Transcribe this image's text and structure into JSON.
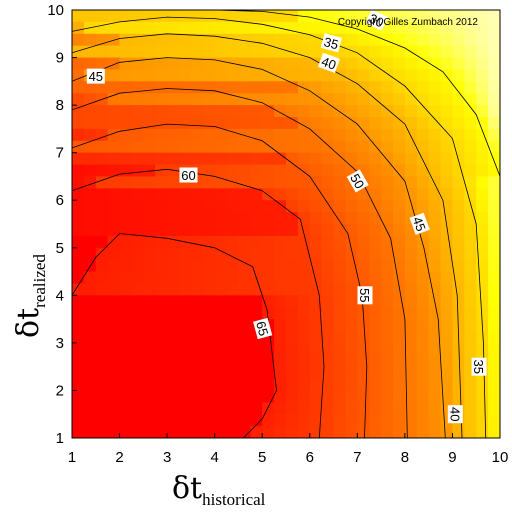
{
  "chart_data": {
    "type": "heatmap",
    "title": "",
    "annotation": "Copyright Gilles Zumbach 2012",
    "xlabel": {
      "symbol": "δt",
      "subscript": "historical"
    },
    "ylabel": {
      "symbol": "δt",
      "subscript": "realized"
    },
    "xlim": [
      1,
      10
    ],
    "ylim": [
      1,
      10
    ],
    "x_ticks": [
      1,
      2,
      3,
      4,
      5,
      6,
      7,
      8,
      9,
      10
    ],
    "y_ticks": [
      1,
      2,
      3,
      4,
      5,
      6,
      7,
      8,
      9,
      10
    ],
    "grid": false,
    "colormap": [
      "#ff0000",
      "#ff8a00",
      "#ffff00",
      "#ffffe0"
    ],
    "value_range": [
      18,
      70
    ],
    "contour_levels": [
      30,
      35,
      40,
      45,
      50,
      55,
      60,
      65
    ],
    "contours": [
      {
        "level": 65,
        "points": [
          [
            1,
            4.0
          ],
          [
            1.5,
            4.8
          ],
          [
            2,
            5.3
          ],
          [
            3,
            5.2
          ],
          [
            4,
            5.0
          ],
          [
            4.8,
            4.6
          ],
          [
            5.1,
            3.7
          ],
          [
            5.3,
            2.0
          ],
          [
            5.0,
            1.4
          ],
          [
            4.6,
            1.0
          ]
        ]
      },
      {
        "level": 60,
        "points": [
          [
            1,
            6.2
          ],
          [
            2,
            6.55
          ],
          [
            3,
            6.65
          ],
          [
            4,
            6.5
          ],
          [
            5,
            6.2
          ],
          [
            5.8,
            5.6
          ],
          [
            6.2,
            4.0
          ],
          [
            6.3,
            2.5
          ],
          [
            6.2,
            1.0
          ]
        ]
      },
      {
        "level": 55,
        "points": [
          [
            1,
            7.1
          ],
          [
            2,
            7.45
          ],
          [
            3,
            7.6
          ],
          [
            4,
            7.55
          ],
          [
            5,
            7.25
          ],
          [
            6,
            6.5
          ],
          [
            6.8,
            5.3
          ],
          [
            7.1,
            4.0
          ],
          [
            7.2,
            2.5
          ],
          [
            7.15,
            1.0
          ]
        ]
      },
      {
        "level": 50,
        "points": [
          [
            1,
            7.9
          ],
          [
            2,
            8.25
          ],
          [
            3,
            8.35
          ],
          [
            4,
            8.3
          ],
          [
            5,
            8.05
          ],
          [
            6,
            7.5
          ],
          [
            7,
            6.6
          ],
          [
            7.7,
            5.2
          ],
          [
            8.0,
            3.5
          ],
          [
            8.05,
            1.0
          ]
        ]
      },
      {
        "level": 45,
        "points": [
          [
            1,
            8.5
          ],
          [
            2,
            8.9
          ],
          [
            3,
            9.0
          ],
          [
            4,
            8.95
          ],
          [
            5,
            8.75
          ],
          [
            6,
            8.3
          ],
          [
            7,
            7.6
          ],
          [
            8,
            6.4
          ],
          [
            8.4,
            5.0
          ],
          [
            8.7,
            3.5
          ],
          [
            8.85,
            1.0
          ]
        ]
      },
      {
        "level": 40,
        "points": [
          [
            1,
            9.1
          ],
          [
            2,
            9.4
          ],
          [
            3,
            9.5
          ],
          [
            4,
            9.45
          ],
          [
            5,
            9.3
          ],
          [
            6,
            9.0
          ],
          [
            7,
            8.45
          ],
          [
            8,
            7.6
          ],
          [
            8.8,
            6.0
          ],
          [
            9.1,
            4.0
          ],
          [
            9.2,
            1.0
          ]
        ]
      },
      {
        "level": 35,
        "points": [
          [
            1,
            9.55
          ],
          [
            2,
            9.75
          ],
          [
            3,
            9.85
          ],
          [
            4,
            9.82
          ],
          [
            5,
            9.7
          ],
          [
            6,
            9.48
          ],
          [
            7,
            9.1
          ],
          [
            8,
            8.4
          ],
          [
            9,
            7.3
          ],
          [
            9.5,
            5.5
          ],
          [
            9.65,
            3.0
          ],
          [
            9.7,
            1.0
          ]
        ]
      },
      {
        "level": 30,
        "points": [
          [
            4,
            10.0
          ],
          [
            5,
            9.97
          ],
          [
            6,
            9.85
          ],
          [
            7,
            9.6
          ],
          [
            8,
            9.2
          ],
          [
            8.8,
            8.7
          ],
          [
            9.5,
            7.8
          ],
          [
            10,
            6.5
          ]
        ]
      }
    ],
    "contour_labels": [
      {
        "text": "30",
        "x": 7.4,
        "y": 9.78,
        "angle": 25
      },
      {
        "text": "35",
        "x": 6.45,
        "y": 9.3,
        "angle": 15
      },
      {
        "text": "40",
        "x": 6.4,
        "y": 8.88,
        "angle": 20
      },
      {
        "text": "45",
        "x": 1.5,
        "y": 8.6,
        "angle": 0
      },
      {
        "text": "50",
        "x": 7.0,
        "y": 6.4,
        "angle": 60
      },
      {
        "text": "45",
        "x": 8.3,
        "y": 5.5,
        "angle": 70
      },
      {
        "text": "55",
        "x": 7.15,
        "y": 4.0,
        "angle": 90
      },
      {
        "text": "60",
        "x": 3.45,
        "y": 6.52,
        "angle": 0
      },
      {
        "text": "65",
        "x": 5.0,
        "y": 3.3,
        "angle": 75
      },
      {
        "text": "35",
        "x": 9.55,
        "y": 2.5,
        "angle": 90
      },
      {
        "text": "40",
        "x": 9.05,
        "y": 1.5,
        "angle": 90
      }
    ]
  }
}
